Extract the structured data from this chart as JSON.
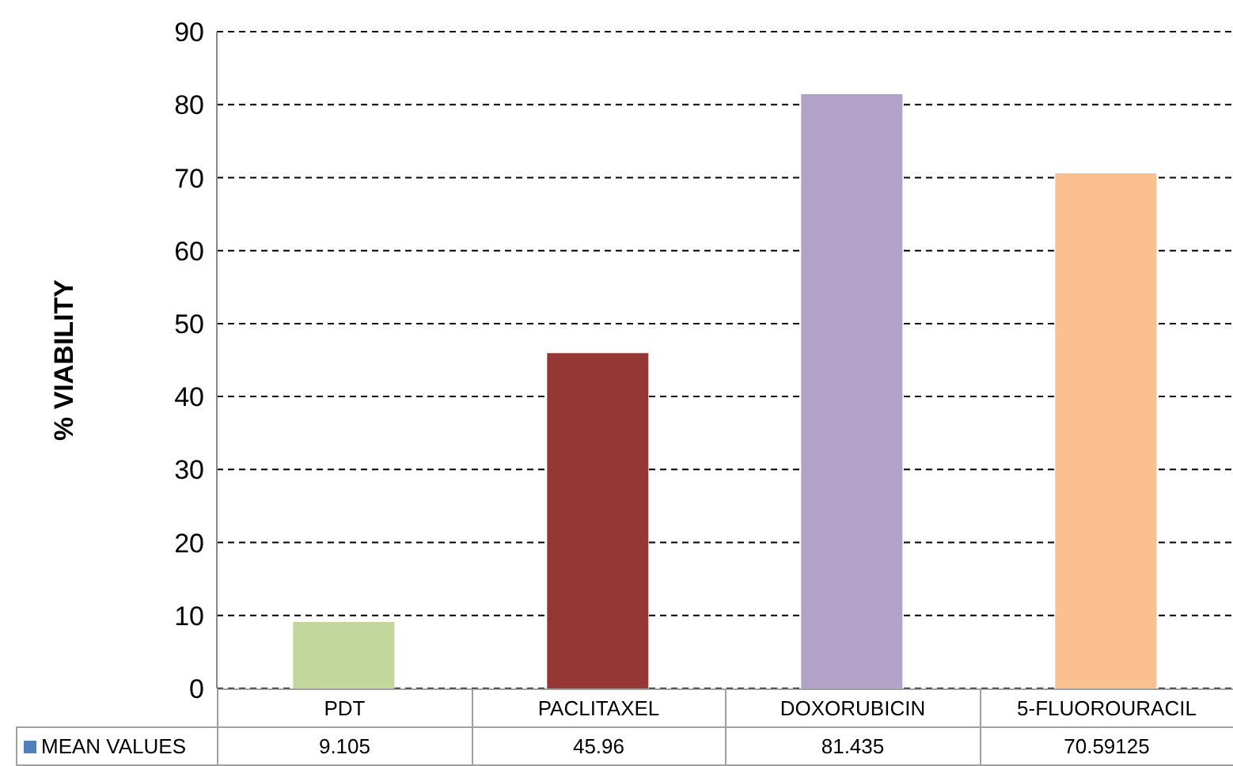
{
  "chart_data": {
    "type": "bar",
    "ylabel": "% VIABILITY",
    "categories": [
      "PDT",
      "PACLITAXEL",
      "DOXORUBICIN",
      "5-FLUOROURACIL"
    ],
    "series": [
      {
        "name": "MEAN VALUES",
        "values": [
          9.105,
          45.96,
          81.435,
          70.59125
        ]
      }
    ],
    "colors": [
      "#c3d69b",
      "#953735",
      "#b3a2c7",
      "#fac090"
    ],
    "ylim": [
      0,
      90
    ],
    "yticks": [
      0,
      10,
      20,
      30,
      40,
      50,
      60,
      70,
      80,
      90
    ],
    "grid": "y",
    "data_labels": true,
    "legend": "bottom"
  }
}
